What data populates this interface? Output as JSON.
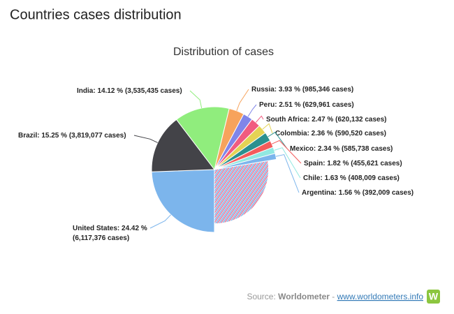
{
  "header": {
    "title": "Countries cases distribution"
  },
  "chart_data": {
    "type": "pie",
    "title": "Distribution of cases",
    "categories": [
      "United States",
      "Brazil",
      "India",
      "Russia",
      "Peru",
      "South Africa",
      "Colombia",
      "Mexico",
      "Spain",
      "Chile",
      "Argentina"
    ],
    "values": [
      24.42,
      15.25,
      14.12,
      3.93,
      2.51,
      2.47,
      2.36,
      2.34,
      1.82,
      1.63,
      1.56
    ],
    "value_labels": [
      "24.42 %",
      "15.25 %",
      "14.12 %",
      "3.93 %",
      "2.51 %",
      "2.47 %",
      "2.36 %",
      "2.34 %",
      "1.82 %",
      "1.63 %",
      "1.56 %"
    ],
    "case_labels": [
      "(6,117,376 cases)",
      "(3,819,077 cases)",
      "(3,535,435 cases)",
      "(985,346 cases)",
      "(629,961 cases)",
      "(620,132 cases)",
      "(590,520 cases)",
      "(585,738 cases)",
      "(455,621 cases)",
      "(408,009 cases)",
      "(392,009 cases)"
    ],
    "colors": [
      "#7cb5ec",
      "#434348",
      "#90ed7d",
      "#f7a35c",
      "#8085e9",
      "#f15c80",
      "#e4d354",
      "#2b908f",
      "#f45b5b",
      "#91e8e1",
      "#7cb5ec"
    ]
  },
  "source": {
    "label": "Source:",
    "name": "Worldometer",
    "separator": "-",
    "link": "www.worldometers.info",
    "logo": "W"
  }
}
